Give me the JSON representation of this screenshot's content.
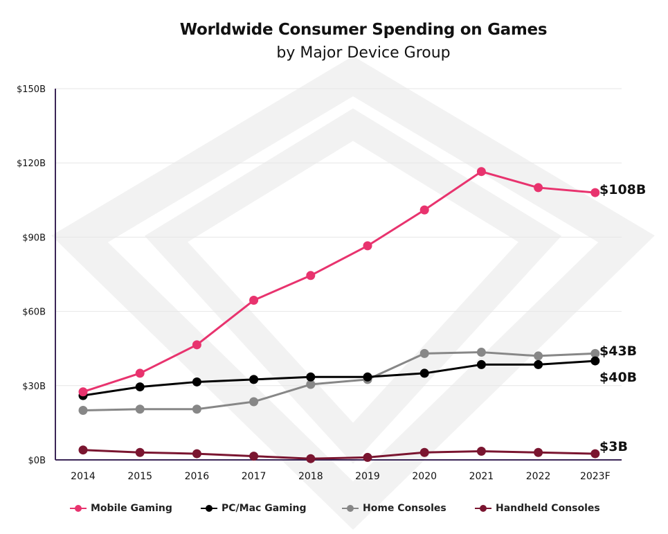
{
  "colors": {
    "mobile": "#e8336e",
    "pc": "#000000",
    "home": "#878787",
    "handheld": "#7a1530",
    "axis": "#3a2556",
    "grid": "#e6e6e6",
    "watermark": "#f2f2f2"
  },
  "chart_data": {
    "type": "line",
    "title": "Worldwide Consumer Spending on Games",
    "subtitle": "by Major Device Group",
    "xlabel": "",
    "ylabel": "",
    "categories": [
      "2014",
      "2015",
      "2016",
      "2017",
      "2018",
      "2019",
      "2020",
      "2021",
      "2022",
      "2023F"
    ],
    "ylim": [
      0,
      150
    ],
    "yticks": [
      "$0B",
      "$30B",
      "$60B",
      "$90B",
      "$120B",
      "$150B"
    ],
    "grid": true,
    "legend_position": "bottom",
    "series": [
      {
        "name": "Mobile Gaming",
        "color_key": "mobile",
        "values": [
          27.5,
          35,
          46.5,
          64.5,
          74.5,
          86.5,
          101,
          116.5,
          110,
          108
        ],
        "end_label": "$108B"
      },
      {
        "name": "PC/Mac Gaming",
        "color_key": "pc",
        "values": [
          26,
          29.5,
          31.5,
          32.5,
          33.5,
          33.5,
          35,
          38.5,
          38.5,
          40
        ],
        "end_label": "$40B"
      },
      {
        "name": "Home Consoles",
        "color_key": "home",
        "values": [
          20,
          20.5,
          20.5,
          23.5,
          30.5,
          32.5,
          43,
          43.5,
          42,
          43
        ],
        "end_label": "$43B"
      },
      {
        "name": "Handheld Consoles",
        "color_key": "handheld",
        "values": [
          4,
          3,
          2.5,
          1.5,
          0.5,
          1,
          3,
          3.5,
          3,
          2.5
        ],
        "end_label": "$3B"
      }
    ]
  }
}
